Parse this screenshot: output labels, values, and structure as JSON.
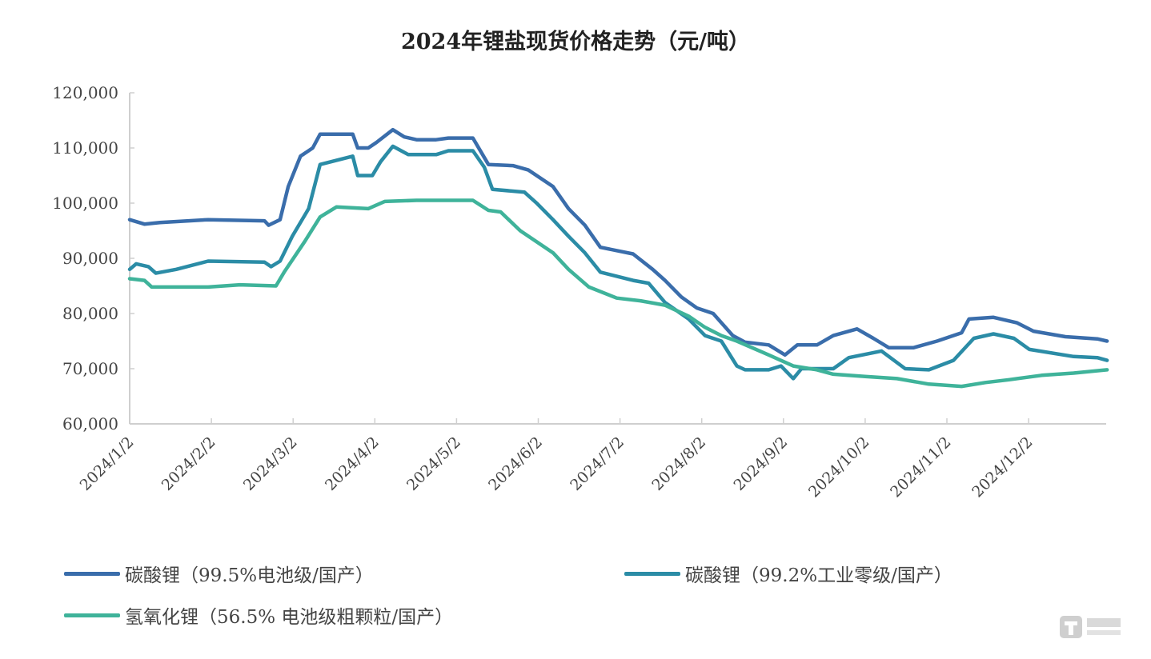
{
  "chart_data": {
    "type": "line",
    "title": "2024年锂盐现货价格走势（元/吨）",
    "xlabel": "",
    "ylabel": "",
    "x_unit": "months since 2024/1/2",
    "xlim": [
      0,
      11.96
    ],
    "ylim": [
      60000,
      120000
    ],
    "yticks": [
      "60,000",
      "70,000",
      "80,000",
      "90,000",
      "100,000",
      "110,000",
      "120,000"
    ],
    "ytick_values": [
      60000,
      70000,
      80000,
      90000,
      100000,
      110000,
      120000
    ],
    "xticks": [
      "2024/1/2",
      "2024/2/2",
      "2024/3/2",
      "2024/4/2",
      "2024/5/2",
      "2024/6/2",
      "2024/7/2",
      "2024/8/2",
      "2024/9/2",
      "2024/10/2",
      "2024/11/2",
      "2024/12/2"
    ],
    "grid": false,
    "legend_position": "bottom",
    "series": [
      {
        "name": "碳酸锂（99.5%电池级/国产）",
        "color": "#3a6dab",
        "points": [
          [
            0,
            97000
          ],
          [
            0.18,
            96200
          ],
          [
            0.37,
            96500
          ],
          [
            0.96,
            97000
          ],
          [
            1.65,
            96800
          ],
          [
            1.7,
            96000
          ],
          [
            1.84,
            97000
          ],
          [
            1.94,
            103000
          ],
          [
            2.09,
            108500
          ],
          [
            2.24,
            110000
          ],
          [
            2.33,
            112500
          ],
          [
            2.73,
            112500
          ],
          [
            2.79,
            110000
          ],
          [
            2.92,
            110000
          ],
          [
            3.02,
            111000
          ],
          [
            3.22,
            113300
          ],
          [
            3.36,
            112000
          ],
          [
            3.51,
            111500
          ],
          [
            3.75,
            111500
          ],
          [
            3.9,
            111800
          ],
          [
            4.2,
            111800
          ],
          [
            4.39,
            107000
          ],
          [
            4.69,
            106800
          ],
          [
            4.88,
            106000
          ],
          [
            5.18,
            103000
          ],
          [
            5.37,
            99000
          ],
          [
            5.57,
            96000
          ],
          [
            5.76,
            92000
          ],
          [
            6.16,
            90800
          ],
          [
            6.4,
            88000
          ],
          [
            6.55,
            86000
          ],
          [
            6.75,
            83000
          ],
          [
            6.94,
            81000
          ],
          [
            7.14,
            80000
          ],
          [
            7.38,
            76000
          ],
          [
            7.53,
            74800
          ],
          [
            7.82,
            74300
          ],
          [
            8.02,
            72500
          ],
          [
            8.17,
            74300
          ],
          [
            8.41,
            74300
          ],
          [
            8.61,
            76000
          ],
          [
            8.9,
            77200
          ],
          [
            9.1,
            75500
          ],
          [
            9.29,
            73800
          ],
          [
            9.59,
            73800
          ],
          [
            9.88,
            75000
          ],
          [
            10.18,
            76500
          ],
          [
            10.27,
            79000
          ],
          [
            10.57,
            79300
          ],
          [
            10.86,
            78300
          ],
          [
            11.06,
            76800
          ],
          [
            11.45,
            75800
          ],
          [
            11.84,
            75400
          ],
          [
            11.96,
            75000
          ]
        ]
      },
      {
        "name": "碳酸锂（99.2%工业零级/国产）",
        "color": "#2b8ca6",
        "points": [
          [
            0,
            88000
          ],
          [
            0.08,
            89000
          ],
          [
            0.23,
            88500
          ],
          [
            0.32,
            87300
          ],
          [
            0.57,
            88000
          ],
          [
            0.96,
            89500
          ],
          [
            1.65,
            89300
          ],
          [
            1.73,
            88500
          ],
          [
            1.84,
            89500
          ],
          [
            1.99,
            94000
          ],
          [
            2.19,
            99000
          ],
          [
            2.33,
            107000
          ],
          [
            2.73,
            108500
          ],
          [
            2.79,
            105000
          ],
          [
            2.97,
            105000
          ],
          [
            3.07,
            107500
          ],
          [
            3.22,
            110300
          ],
          [
            3.41,
            108800
          ],
          [
            3.75,
            108800
          ],
          [
            3.9,
            109500
          ],
          [
            4.2,
            109500
          ],
          [
            4.34,
            106500
          ],
          [
            4.44,
            102500
          ],
          [
            4.83,
            102000
          ],
          [
            4.98,
            100000
          ],
          [
            5.18,
            97000
          ],
          [
            5.37,
            94000
          ],
          [
            5.57,
            91000
          ],
          [
            5.76,
            87500
          ],
          [
            6.16,
            86000
          ],
          [
            6.35,
            85500
          ],
          [
            6.55,
            82000
          ],
          [
            6.84,
            79000
          ],
          [
            7.04,
            76000
          ],
          [
            7.24,
            75000
          ],
          [
            7.43,
            70500
          ],
          [
            7.53,
            69800
          ],
          [
            7.82,
            69800
          ],
          [
            7.97,
            70500
          ],
          [
            8.12,
            68200
          ],
          [
            8.22,
            70000
          ],
          [
            8.61,
            70000
          ],
          [
            8.8,
            72000
          ],
          [
            9.2,
            73200
          ],
          [
            9.49,
            70000
          ],
          [
            9.78,
            69800
          ],
          [
            10.08,
            71500
          ],
          [
            10.33,
            75500
          ],
          [
            10.57,
            76300
          ],
          [
            10.82,
            75500
          ],
          [
            11.01,
            73500
          ],
          [
            11.55,
            72200
          ],
          [
            11.84,
            72000
          ],
          [
            11.96,
            71500
          ]
        ]
      },
      {
        "name": "氢氧化锂（56.5% 电池级粗颗粒/国产）",
        "color": "#3fb39a",
        "points": [
          [
            0,
            86300
          ],
          [
            0.18,
            86000
          ],
          [
            0.27,
            84800
          ],
          [
            0.96,
            84800
          ],
          [
            1.35,
            85200
          ],
          [
            1.79,
            85000
          ],
          [
            1.89,
            87500
          ],
          [
            2.14,
            93000
          ],
          [
            2.33,
            97500
          ],
          [
            2.53,
            99300
          ],
          [
            2.92,
            99000
          ],
          [
            3.12,
            100300
          ],
          [
            3.51,
            100500
          ],
          [
            4.2,
            100500
          ],
          [
            4.39,
            98700
          ],
          [
            4.54,
            98400
          ],
          [
            4.78,
            95000
          ],
          [
            5.18,
            91000
          ],
          [
            5.37,
            88000
          ],
          [
            5.62,
            84800
          ],
          [
            5.96,
            82800
          ],
          [
            6.25,
            82300
          ],
          [
            6.55,
            81500
          ],
          [
            6.84,
            79500
          ],
          [
            7.04,
            77500
          ],
          [
            7.24,
            76000
          ],
          [
            7.43,
            75000
          ],
          [
            7.82,
            72500
          ],
          [
            8.12,
            70500
          ],
          [
            8.41,
            69800
          ],
          [
            8.61,
            69000
          ],
          [
            9.0,
            68600
          ],
          [
            9.39,
            68200
          ],
          [
            9.78,
            67200
          ],
          [
            10.18,
            66800
          ],
          [
            10.47,
            67500
          ],
          [
            10.76,
            68000
          ],
          [
            11.16,
            68800
          ],
          [
            11.55,
            69200
          ],
          [
            11.96,
            69800
          ]
        ]
      }
    ]
  },
  "watermark": {
    "text": "钛媒体",
    "subtext": "TMTPOST"
  }
}
